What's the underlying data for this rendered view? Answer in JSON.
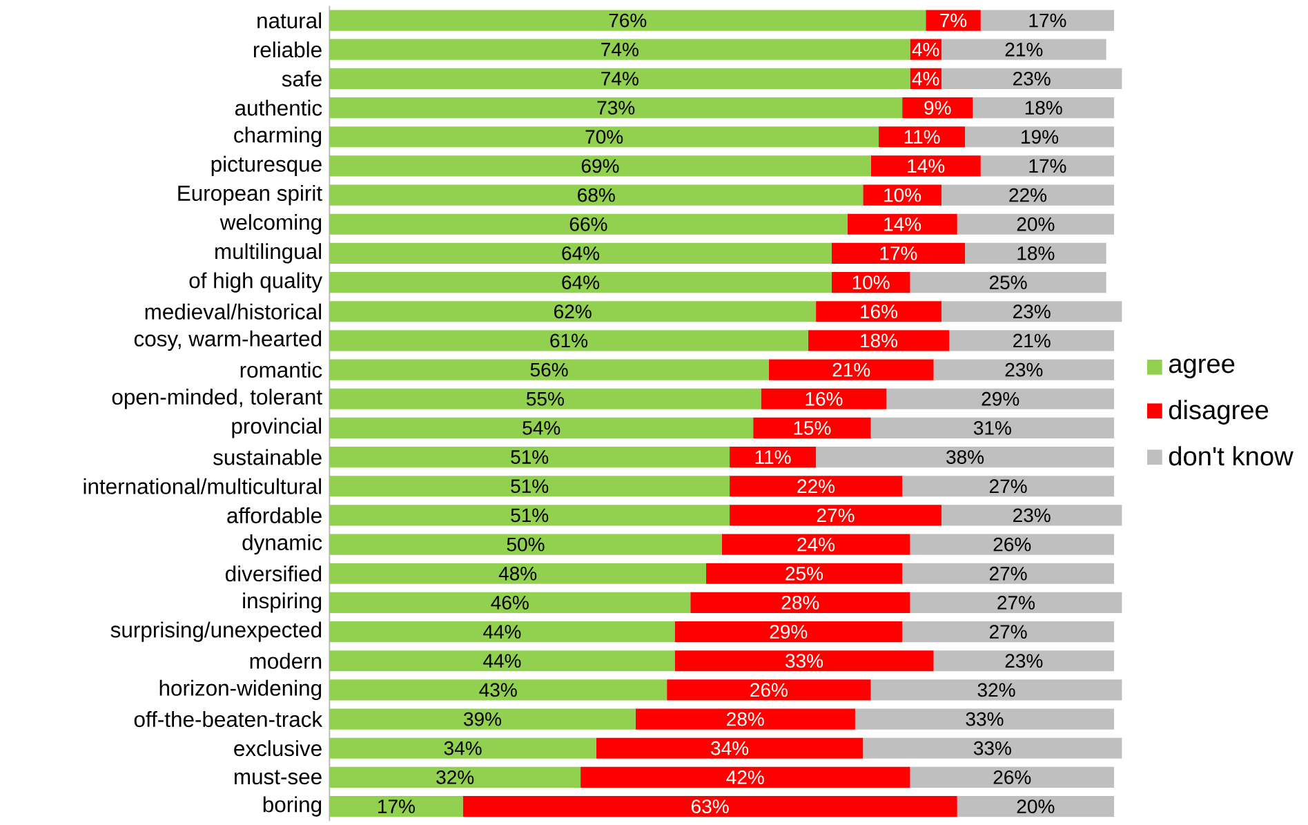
{
  "chart_data": {
    "type": "bar",
    "orientation": "horizontal",
    "stacked": true,
    "legend": "right",
    "tick_labels": "y",
    "xlim": [
      0,
      101
    ],
    "categories": [
      "natural",
      "reliable",
      "safe",
      "authentic",
      "charming",
      "picturesque",
      "European spirit",
      "welcoming",
      "multilingual",
      "of high quality",
      "medieval/historical",
      "cosy, warm-hearted",
      "romantic",
      "open-minded, tolerant",
      "provincial",
      "sustainable",
      "international/multicultural",
      "affordable",
      "dynamic",
      "diversified",
      "inspiring",
      "surprising/unexpected",
      "modern",
      "horizon-widening",
      "off-the-beaten-track",
      "exclusive",
      "must-see",
      "boring"
    ],
    "series": [
      {
        "name": "agree",
        "color": "#92d050",
        "values": [
          76,
          74,
          74,
          73,
          70,
          69,
          68,
          66,
          64,
          64,
          62,
          61,
          56,
          55,
          54,
          51,
          51,
          51,
          50,
          48,
          46,
          44,
          44,
          43,
          39,
          34,
          32,
          17
        ],
        "value_labels": [
          "76%",
          "74%",
          "74%",
          "73%",
          "70%",
          "69%",
          "68%",
          "66%",
          "64%",
          "64%",
          "62%",
          "61%",
          "56%",
          "55%",
          "54%",
          "51%",
          "51%",
          "51%",
          "50%",
          "48%",
          "46%",
          "44%",
          "44%",
          "43%",
          "39%",
          "34%",
          "32%",
          "17%"
        ]
      },
      {
        "name": "disagree",
        "color": "#ff0000",
        "values": [
          7,
          4,
          4,
          9,
          11,
          14,
          10,
          14,
          17,
          10,
          16,
          18,
          21,
          16,
          15,
          11,
          22,
          27,
          24,
          25,
          28,
          29,
          33,
          26,
          28,
          34,
          42,
          63
        ],
        "value_labels": [
          "7%",
          "4%",
          "4%",
          "9%",
          "11%",
          "14%",
          "10%",
          "14%",
          "17%",
          "10%",
          "16%",
          "18%",
          "21%",
          "16%",
          "15%",
          "11%",
          "22%",
          "27%",
          "24%",
          "25%",
          "28%",
          "29%",
          "33%",
          "26%",
          "28%",
          "34%",
          "42%",
          "63%"
        ]
      },
      {
        "name": "don't know",
        "color": "#bfbfbf",
        "values": [
          17,
          21,
          23,
          18,
          19,
          17,
          22,
          20,
          18,
          25,
          23,
          21,
          23,
          29,
          31,
          38,
          27,
          23,
          26,
          27,
          27,
          27,
          23,
          32,
          33,
          33,
          26,
          20
        ],
        "value_labels": [
          "17%",
          "21%",
          "23%",
          "18%",
          "19%",
          "17%",
          "22%",
          "20%",
          "18%",
          "25%",
          "23%",
          "21%",
          "23%",
          "29%",
          "31%",
          "38%",
          "27%",
          "23%",
          "26%",
          "27%",
          "27%",
          "27%",
          "23%",
          "32%",
          "33%",
          "33%",
          "26%",
          "20%"
        ]
      }
    ]
  }
}
